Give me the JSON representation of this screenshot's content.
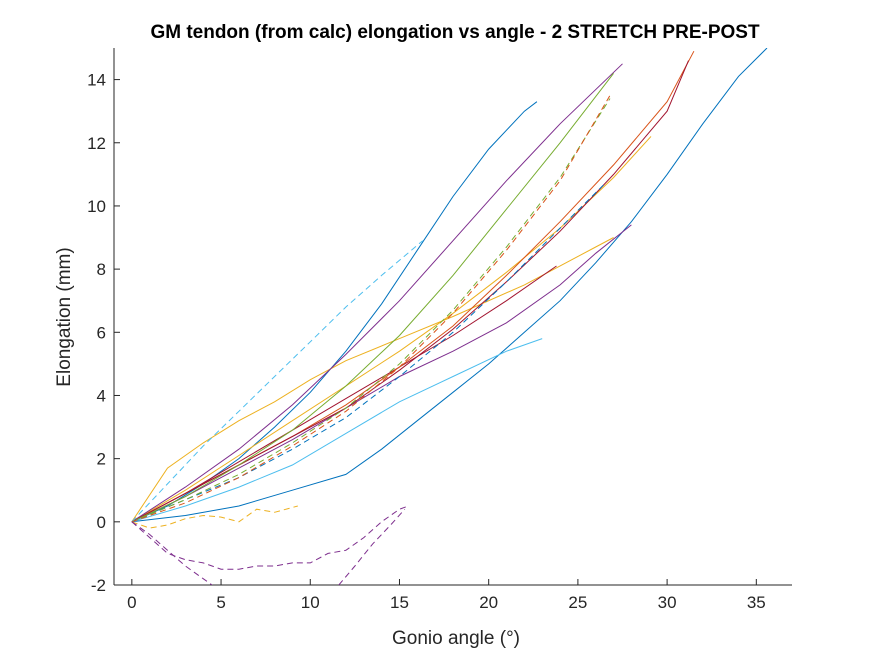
{
  "chart_data": {
    "type": "line",
    "title": "GM tendon (from calc) elongation vs angle - 2 STRETCH PRE-POST",
    "xlabel": "Gonio angle (°)",
    "ylabel": "Elongation (mm)",
    "xlim": [
      -1,
      37
    ],
    "ylim": [
      -2,
      15
    ],
    "xticks": [
      0,
      5,
      10,
      15,
      20,
      25,
      30,
      35
    ],
    "yticks": [
      -2,
      0,
      2,
      4,
      6,
      8,
      10,
      12,
      14
    ],
    "grid": false,
    "legend": "none",
    "series": [
      {
        "style": "solid",
        "color": "#0072BD",
        "x": [
          0,
          2,
          4,
          6,
          8,
          10,
          12,
          14,
          16,
          18,
          20,
          22,
          22.7
        ],
        "y": [
          0,
          0.5,
          1.2,
          2.0,
          3.0,
          4.1,
          5.4,
          6.9,
          8.6,
          10.3,
          11.8,
          13.0,
          13.3
        ]
      },
      {
        "style": "solid",
        "color": "#0072BD",
        "x": [
          0,
          3,
          6,
          9,
          12,
          14,
          16,
          18,
          20,
          22,
          24,
          26,
          28,
          30,
          32,
          34,
          35.6
        ],
        "y": [
          0,
          0.2,
          0.5,
          1.0,
          1.5,
          2.3,
          3.2,
          4.1,
          5.0,
          6.0,
          7.0,
          8.2,
          9.5,
          11.0,
          12.6,
          14.1,
          15.0
        ]
      },
      {
        "style": "solid",
        "color": "#4DBEEE",
        "x": [
          0,
          3,
          6,
          9,
          12,
          15,
          18,
          21,
          23
        ],
        "y": [
          0,
          0.5,
          1.1,
          1.8,
          2.8,
          3.8,
          4.6,
          5.4,
          5.8
        ]
      },
      {
        "style": "solid",
        "color": "#EDB120",
        "x": [
          0,
          2,
          4,
          6,
          8,
          10,
          12,
          15,
          18,
          22,
          26,
          27
        ],
        "y": [
          0,
          1.7,
          2.5,
          3.2,
          3.8,
          4.5,
          5.1,
          5.8,
          6.5,
          7.5,
          8.7,
          9.0
        ]
      },
      {
        "style": "solid",
        "color": "#EDB120",
        "x": [
          0,
          3,
          6,
          9,
          12,
          15,
          18,
          21,
          24,
          27,
          29.1
        ],
        "y": [
          0,
          1.0,
          2.1,
          3.2,
          4.3,
          5.4,
          6.6,
          7.9,
          9.3,
          10.9,
          12.2
        ]
      },
      {
        "style": "solid",
        "color": "#7E2F8E",
        "x": [
          0,
          3,
          6,
          9,
          12,
          15,
          18,
          21,
          24,
          26,
          28
        ],
        "y": [
          0,
          0.8,
          1.7,
          2.6,
          3.6,
          4.6,
          5.4,
          6.3,
          7.5,
          8.5,
          9.4
        ]
      },
      {
        "style": "solid",
        "color": "#7E2F8E",
        "x": [
          0,
          3,
          6,
          9,
          12,
          15,
          18,
          21,
          24,
          27.5
        ],
        "y": [
          0,
          1.1,
          2.3,
          3.7,
          5.3,
          7.0,
          8.9,
          10.8,
          12.6,
          14.5
        ]
      },
      {
        "style": "solid",
        "color": "#A2142F",
        "x": [
          0,
          3,
          6,
          9,
          12,
          15,
          18,
          21,
          23.8
        ],
        "y": [
          0,
          0.9,
          1.9,
          2.9,
          3.9,
          4.9,
          5.9,
          7.0,
          8.1
        ]
      },
      {
        "style": "solid",
        "color": "#D95319",
        "x": [
          0,
          3,
          6,
          9,
          12,
          15,
          18,
          21,
          24,
          27,
          30,
          31.5
        ],
        "y": [
          0,
          0.9,
          1.8,
          2.7,
          3.7,
          4.9,
          6.2,
          7.8,
          9.5,
          11.3,
          13.3,
          14.9
        ]
      },
      {
        "style": "solid",
        "color": "#A2142F",
        "x": [
          0,
          3,
          6,
          9,
          12,
          15,
          18,
          21,
          24,
          27,
          30,
          31.2
        ],
        "y": [
          0,
          0.9,
          1.8,
          2.7,
          3.6,
          4.8,
          6.1,
          7.6,
          9.2,
          11.0,
          13.0,
          14.6
        ]
      },
      {
        "style": "solid",
        "color": "#77AC30",
        "x": [
          0,
          3,
          6,
          9,
          12,
          15,
          18,
          21,
          24,
          27
        ],
        "y": [
          0,
          0.8,
          1.8,
          2.9,
          4.3,
          5.9,
          7.8,
          9.9,
          12.0,
          14.2
        ]
      },
      {
        "style": "dashed",
        "color": "#4DBEEE",
        "x": [
          0,
          2,
          4,
          6,
          8,
          10,
          12,
          14,
          16.3
        ],
        "y": [
          0,
          1.2,
          2.4,
          3.5,
          4.6,
          5.7,
          6.8,
          7.8,
          8.9
        ]
      },
      {
        "style": "dashed",
        "color": "#0072BD",
        "x": [
          0,
          3,
          6,
          9,
          12,
          15,
          18,
          21,
          24,
          26.5
        ],
        "y": [
          0,
          0.7,
          1.4,
          2.3,
          3.3,
          4.6,
          6.0,
          7.6,
          9.3,
          10.7
        ]
      },
      {
        "style": "dashed",
        "color": "#77AC30",
        "x": [
          0,
          3,
          6,
          9,
          12,
          15,
          18,
          21,
          24,
          26.8
        ],
        "y": [
          0,
          0.7,
          1.5,
          2.5,
          3.6,
          5.0,
          6.7,
          8.7,
          10.9,
          13.4
        ]
      },
      {
        "style": "dashed",
        "color": "#D95319",
        "x": [
          0,
          3,
          6,
          9,
          12,
          15,
          18,
          21,
          24,
          26.8
        ],
        "y": [
          0,
          0.6,
          1.4,
          2.4,
          3.5,
          4.9,
          6.6,
          8.6,
          10.8,
          13.5
        ]
      },
      {
        "style": "dashed",
        "color": "#EDB120",
        "x": [
          0,
          1,
          2,
          3,
          4,
          5,
          6,
          7,
          8,
          9.3
        ],
        "y": [
          0,
          -0.2,
          -0.1,
          0.1,
          0.2,
          0.15,
          0.0,
          0.4,
          0.3,
          0.5
        ]
      },
      {
        "style": "dashed",
        "color": "#7E2F8E",
        "x": [
          0,
          1,
          2,
          3,
          4,
          5,
          6,
          7,
          8,
          9,
          10,
          11,
          12,
          13,
          14,
          15,
          15.5
        ],
        "y": [
          0,
          -0.5,
          -1.0,
          -1.2,
          -1.3,
          -1.5,
          -1.5,
          -1.4,
          -1.4,
          -1.3,
          -1.3,
          -1.0,
          -0.9,
          -0.5,
          0.0,
          0.4,
          0.5
        ]
      },
      {
        "style": "dashed",
        "color": "#7E2F8E",
        "x": [
          0,
          1,
          2,
          3,
          4,
          4.5
        ],
        "y": [
          0,
          -0.4,
          -0.9,
          -1.4,
          -1.8,
          -2.0
        ]
      },
      {
        "style": "dashed",
        "color": "#7E2F8E",
        "x": [
          11.6,
          12.5,
          13.5,
          14.5,
          15.3
        ],
        "y": [
          -2.0,
          -1.4,
          -0.7,
          -0.1,
          0.4
        ]
      }
    ]
  }
}
